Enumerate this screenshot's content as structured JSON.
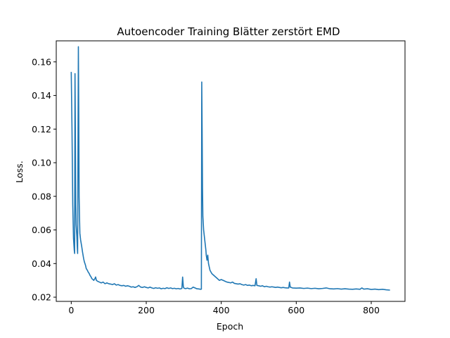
{
  "chart_data": {
    "type": "line",
    "title": "Autoencoder Training Blätter zerstört EMD",
    "xlabel": "Epoch",
    "ylabel": "Loss.",
    "xlim": [
      -40,
      890
    ],
    "ylim": [
      0.0175,
      0.1725
    ],
    "xticks": [
      0,
      200,
      400,
      600,
      800
    ],
    "yticks": [
      0.02,
      0.04,
      0.06,
      0.08,
      0.1,
      0.12,
      0.14,
      0.16
    ],
    "grid": false,
    "legend": "none",
    "series": [
      {
        "color": "#1f77b4",
        "points": [
          [
            0,
            0.154
          ],
          [
            2,
            0.12
          ],
          [
            4,
            0.075
          ],
          [
            6,
            0.055
          ],
          [
            8,
            0.048
          ],
          [
            9,
            0.046
          ],
          [
            10,
            0.153
          ],
          [
            11,
            0.12
          ],
          [
            12,
            0.075
          ],
          [
            13,
            0.063
          ],
          [
            15,
            0.056
          ],
          [
            16,
            0.05
          ],
          [
            17,
            0.046
          ],
          [
            19,
            0.169
          ],
          [
            20,
            0.13
          ],
          [
            21,
            0.08
          ],
          [
            22,
            0.068
          ],
          [
            23,
            0.058
          ],
          [
            25,
            0.054
          ],
          [
            28,
            0.05
          ],
          [
            30,
            0.047
          ],
          [
            33,
            0.043
          ],
          [
            35,
            0.041
          ],
          [
            38,
            0.039
          ],
          [
            40,
            0.037
          ],
          [
            43,
            0.036
          ],
          [
            45,
            0.035
          ],
          [
            48,
            0.034
          ],
          [
            50,
            0.033
          ],
          [
            53,
            0.032
          ],
          [
            55,
            0.031
          ],
          [
            58,
            0.0305
          ],
          [
            60,
            0.03
          ],
          [
            63,
            0.031
          ],
          [
            65,
            0.032
          ],
          [
            67,
            0.03
          ],
          [
            70,
            0.0295
          ],
          [
            75,
            0.029
          ],
          [
            80,
            0.0285
          ],
          [
            85,
            0.029
          ],
          [
            90,
            0.028
          ],
          [
            95,
            0.0285
          ],
          [
            100,
            0.028
          ],
          [
            105,
            0.0278
          ],
          [
            110,
            0.0275
          ],
          [
            115,
            0.028
          ],
          [
            120,
            0.0272
          ],
          [
            125,
            0.0275
          ],
          [
            130,
            0.027
          ],
          [
            135,
            0.0268
          ],
          [
            140,
            0.027
          ],
          [
            145,
            0.0265
          ],
          [
            150,
            0.0268
          ],
          [
            155,
            0.0265
          ],
          [
            160,
            0.026
          ],
          [
            165,
            0.0262
          ],
          [
            170,
            0.0258
          ],
          [
            175,
            0.0262
          ],
          [
            180,
            0.027
          ],
          [
            185,
            0.026
          ],
          [
            190,
            0.0258
          ],
          [
            195,
            0.0262
          ],
          [
            200,
            0.0258
          ],
          [
            205,
            0.0255
          ],
          [
            210,
            0.026
          ],
          [
            215,
            0.0255
          ],
          [
            220,
            0.0252
          ],
          [
            225,
            0.0256
          ],
          [
            230,
            0.0253
          ],
          [
            235,
            0.0255
          ],
          [
            240,
            0.025
          ],
          [
            245,
            0.0253
          ],
          [
            250,
            0.0251
          ],
          [
            255,
            0.0256
          ],
          [
            260,
            0.0252
          ],
          [
            265,
            0.0255
          ],
          [
            270,
            0.0251
          ],
          [
            275,
            0.0253
          ],
          [
            280,
            0.025
          ],
          [
            285,
            0.0252
          ],
          [
            290,
            0.0249
          ],
          [
            295,
            0.0252
          ],
          [
            297,
            0.032
          ],
          [
            299,
            0.026
          ],
          [
            301,
            0.0253
          ],
          [
            305,
            0.0251
          ],
          [
            310,
            0.0254
          ],
          [
            315,
            0.025
          ],
          [
            320,
            0.0251
          ],
          [
            325,
            0.026
          ],
          [
            330,
            0.0255
          ],
          [
            335,
            0.025
          ],
          [
            340,
            0.0249
          ],
          [
            345,
            0.0247
          ],
          [
            347,
            0.0248
          ],
          [
            348,
            0.148
          ],
          [
            349,
            0.12
          ],
          [
            350,
            0.085
          ],
          [
            351,
            0.068
          ],
          [
            353,
            0.06
          ],
          [
            355,
            0.056
          ],
          [
            357,
            0.052
          ],
          [
            359,
            0.048
          ],
          [
            360,
            0.045
          ],
          [
            362,
            0.042
          ],
          [
            364,
            0.045
          ],
          [
            366,
            0.04
          ],
          [
            368,
            0.038
          ],
          [
            370,
            0.036
          ],
          [
            375,
            0.034
          ],
          [
            380,
            0.033
          ],
          [
            385,
            0.032
          ],
          [
            390,
            0.031
          ],
          [
            395,
            0.03
          ],
          [
            400,
            0.0305
          ],
          [
            405,
            0.03
          ],
          [
            410,
            0.0295
          ],
          [
            415,
            0.029
          ],
          [
            420,
            0.0288
          ],
          [
            425,
            0.0285
          ],
          [
            430,
            0.029
          ],
          [
            435,
            0.0282
          ],
          [
            440,
            0.028
          ],
          [
            445,
            0.0278
          ],
          [
            450,
            0.028
          ],
          [
            455,
            0.0275
          ],
          [
            460,
            0.0272
          ],
          [
            465,
            0.0275
          ],
          [
            470,
            0.027
          ],
          [
            475,
            0.0272
          ],
          [
            480,
            0.0268
          ],
          [
            485,
            0.027
          ],
          [
            490,
            0.0268
          ],
          [
            493,
            0.031
          ],
          [
            495,
            0.027
          ],
          [
            500,
            0.0268
          ],
          [
            505,
            0.0265
          ],
          [
            510,
            0.0268
          ],
          [
            515,
            0.0262
          ],
          [
            520,
            0.0265
          ],
          [
            525,
            0.0262
          ],
          [
            530,
            0.026
          ],
          [
            535,
            0.0262
          ],
          [
            540,
            0.026
          ],
          [
            545,
            0.0258
          ],
          [
            550,
            0.026
          ],
          [
            555,
            0.0258
          ],
          [
            560,
            0.0256
          ],
          [
            565,
            0.0258
          ],
          [
            570,
            0.0256
          ],
          [
            575,
            0.0255
          ],
          [
            580,
            0.0255
          ],
          [
            582,
            0.029
          ],
          [
            584,
            0.026
          ],
          [
            590,
            0.0255
          ],
          [
            600,
            0.0254
          ],
          [
            610,
            0.0255
          ],
          [
            620,
            0.0252
          ],
          [
            630,
            0.0254
          ],
          [
            640,
            0.0251
          ],
          [
            650,
            0.0253
          ],
          [
            660,
            0.025
          ],
          [
            670,
            0.0252
          ],
          [
            680,
            0.0255
          ],
          [
            690,
            0.025
          ],
          [
            700,
            0.0249
          ],
          [
            710,
            0.0251
          ],
          [
            720,
            0.0248
          ],
          [
            730,
            0.025
          ],
          [
            740,
            0.0248
          ],
          [
            750,
            0.0247
          ],
          [
            760,
            0.0249
          ],
          [
            770,
            0.0247
          ],
          [
            775,
            0.0255
          ],
          [
            780,
            0.0248
          ],
          [
            790,
            0.025
          ],
          [
            800,
            0.0246
          ],
          [
            810,
            0.0248
          ],
          [
            820,
            0.0245
          ],
          [
            830,
            0.0247
          ],
          [
            840,
            0.0244
          ],
          [
            850,
            0.0242
          ]
        ]
      }
    ]
  }
}
